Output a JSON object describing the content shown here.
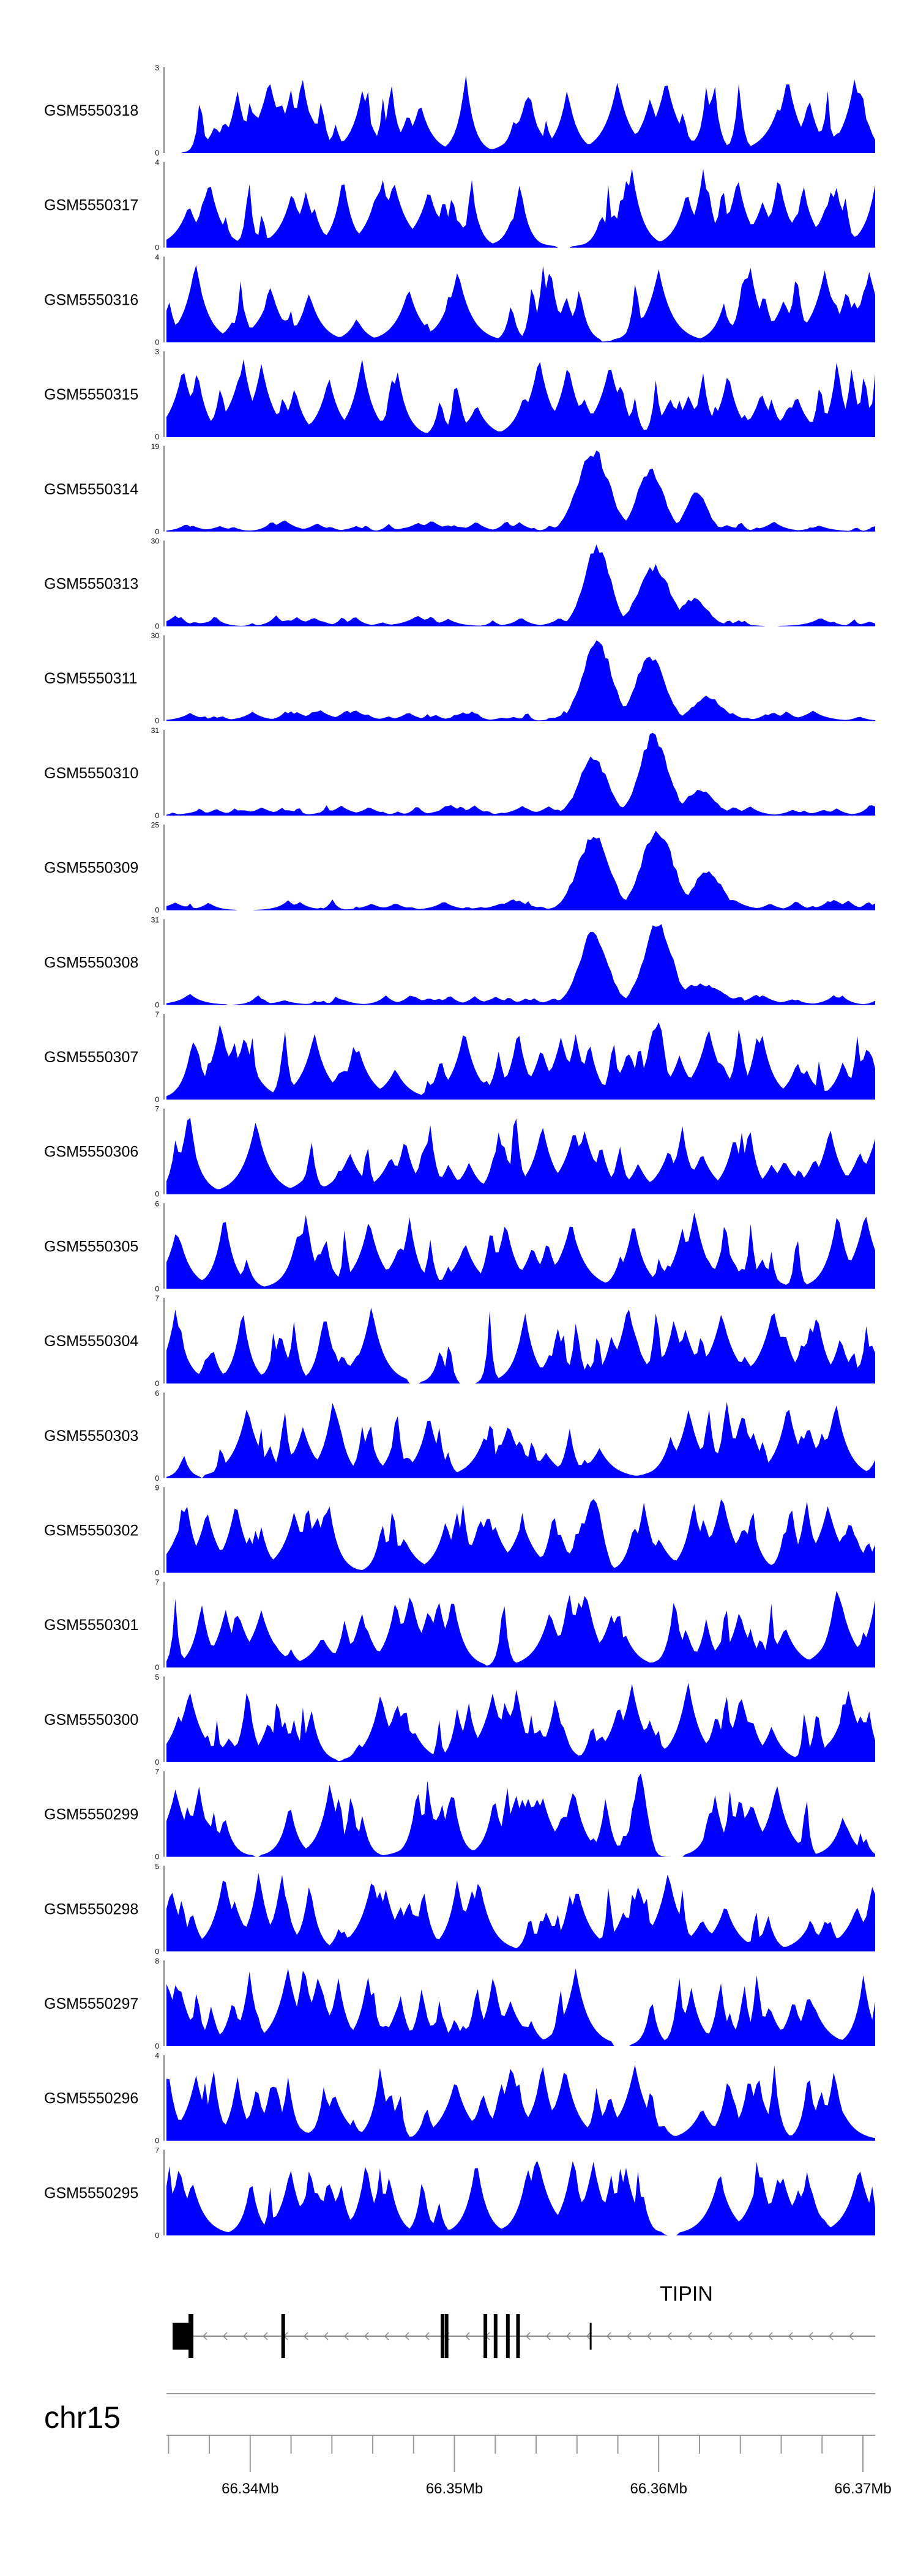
{
  "chart_data": {
    "type": "area",
    "fill_color": "#0000ff",
    "chromosome": "chr15",
    "gene": {
      "name": "TIPIN",
      "strand": "-",
      "exon_positions_mb": [
        66.3362,
        66.3363,
        66.3366,
        66.3416,
        66.3494,
        66.3496,
        66.3515,
        66.352,
        66.3526,
        66.3531,
        66.3567
      ]
    },
    "x_range_mb": [
      66.3359,
      66.3706
    ],
    "x_ticks": [
      {
        "value": 66.34,
        "label": "66.34Mb"
      },
      {
        "value": 66.35,
        "label": "66.35Mb"
      },
      {
        "value": 66.36,
        "label": "66.36Mb"
      },
      {
        "value": 66.37,
        "label": "66.37Mb"
      }
    ],
    "tracks": [
      {
        "name": "GSM5550318",
        "ylim": [
          0,
          3
        ],
        "ytick_labels": [
          "3",
          "0"
        ],
        "seed": 318,
        "peaks": []
      },
      {
        "name": "GSM5550317",
        "ylim": [
          0,
          4
        ],
        "ytick_labels": [
          "4",
          "0"
        ],
        "seed": 317,
        "peaks": []
      },
      {
        "name": "GSM5550316",
        "ylim": [
          0,
          4
        ],
        "ytick_labels": [
          "4",
          "0"
        ],
        "seed": 316,
        "peaks": []
      },
      {
        "name": "GSM5550315",
        "ylim": [
          0,
          3
        ],
        "ytick_labels": [
          "3",
          "0"
        ],
        "seed": 315,
        "peaks": []
      },
      {
        "name": "GSM5550314",
        "ylim": [
          0,
          19
        ],
        "ytick_labels": [
          "19",
          "0"
        ],
        "seed": 314,
        "peaks": [
          [
            0.6,
            0.022,
            19
          ],
          [
            0.68,
            0.018,
            15
          ],
          [
            0.745,
            0.015,
            9
          ]
        ]
      },
      {
        "name": "GSM5550313",
        "ylim": [
          0,
          30
        ],
        "ytick_labels": [
          "30",
          "0"
        ],
        "seed": 313,
        "peaks": [
          [
            0.605,
            0.018,
            30
          ],
          [
            0.685,
            0.022,
            22
          ],
          [
            0.74,
            0.02,
            10
          ]
        ]
      },
      {
        "name": "GSM5550311",
        "ylim": [
          0,
          30
        ],
        "ytick_labels": [
          "30",
          "0"
        ],
        "seed": 311,
        "peaks": [
          [
            0.605,
            0.02,
            30
          ],
          [
            0.68,
            0.02,
            24
          ],
          [
            0.76,
            0.02,
            9
          ]
        ]
      },
      {
        "name": "GSM5550310",
        "ylim": [
          0,
          31
        ],
        "ytick_labels": [
          "31",
          "0"
        ],
        "seed": 310,
        "peaks": [
          [
            0.6,
            0.02,
            22
          ],
          [
            0.685,
            0.02,
            31
          ],
          [
            0.75,
            0.02,
            10
          ]
        ]
      },
      {
        "name": "GSM5550309",
        "ylim": [
          0,
          25
        ],
        "ytick_labels": [
          "25",
          "0"
        ],
        "seed": 309,
        "peaks": [
          [
            0.6,
            0.022,
            23
          ],
          [
            0.69,
            0.022,
            25
          ],
          [
            0.76,
            0.02,
            12
          ]
        ]
      },
      {
        "name": "GSM5550308",
        "ylim": [
          0,
          31
        ],
        "ytick_labels": [
          "31",
          "0"
        ],
        "seed": 308,
        "peaks": [
          [
            0.6,
            0.02,
            28
          ],
          [
            0.69,
            0.02,
            31
          ],
          [
            0.75,
            0.03,
            8
          ]
        ]
      },
      {
        "name": "GSM5550307",
        "ylim": [
          0,
          7
        ],
        "ytick_labels": [
          "7",
          "0"
        ],
        "seed": 307,
        "peaks": [
          [
            0.69,
            0.01,
            7
          ]
        ]
      },
      {
        "name": "GSM5550306",
        "ylim": [
          0,
          7
        ],
        "ytick_labels": [
          "7",
          "0"
        ],
        "seed": 306,
        "peaks": []
      },
      {
        "name": "GSM5550305",
        "ylim": [
          0,
          6
        ],
        "ytick_labels": [
          "6",
          "0"
        ],
        "seed": 305,
        "peaks": []
      },
      {
        "name": "GSM5550304",
        "ylim": [
          0,
          7
        ],
        "ytick_labels": [
          "7",
          "0"
        ],
        "seed": 304,
        "peaks": []
      },
      {
        "name": "GSM5550303",
        "ylim": [
          0,
          6
        ],
        "ytick_labels": [
          "6",
          "0"
        ],
        "seed": 303,
        "peaks": []
      },
      {
        "name": "GSM5550302",
        "ylim": [
          0,
          9
        ],
        "ytick_labels": [
          "9",
          "0"
        ],
        "seed": 302,
        "peaks": [
          [
            0.6,
            0.012,
            9
          ]
        ]
      },
      {
        "name": "GSM5550301",
        "ylim": [
          0,
          7
        ],
        "ytick_labels": [
          "7",
          "0"
        ],
        "seed": 301,
        "peaks": []
      },
      {
        "name": "GSM5550300",
        "ylim": [
          0,
          5
        ],
        "ytick_labels": [
          "5",
          "0"
        ],
        "seed": 300,
        "peaks": []
      },
      {
        "name": "GSM5550299",
        "ylim": [
          0,
          7
        ],
        "ytick_labels": [
          "7",
          "0"
        ],
        "seed": 299,
        "peaks": [
          [
            0.665,
            0.01,
            7
          ]
        ]
      },
      {
        "name": "GSM5550298",
        "ylim": [
          0,
          5
        ],
        "ytick_labels": [
          "5",
          "0"
        ],
        "seed": 298,
        "peaks": []
      },
      {
        "name": "GSM5550297",
        "ylim": [
          0,
          8
        ],
        "ytick_labels": [
          "8",
          "0"
        ],
        "seed": 297,
        "peaks": []
      },
      {
        "name": "GSM5550296",
        "ylim": [
          0,
          4
        ],
        "ytick_labels": [
          "4",
          "0"
        ],
        "seed": 296,
        "peaks": []
      },
      {
        "name": "GSM5550295",
        "ylim": [
          0,
          7
        ],
        "ytick_labels": [
          "7",
          "0"
        ],
        "seed": 295,
        "peaks": []
      }
    ]
  }
}
